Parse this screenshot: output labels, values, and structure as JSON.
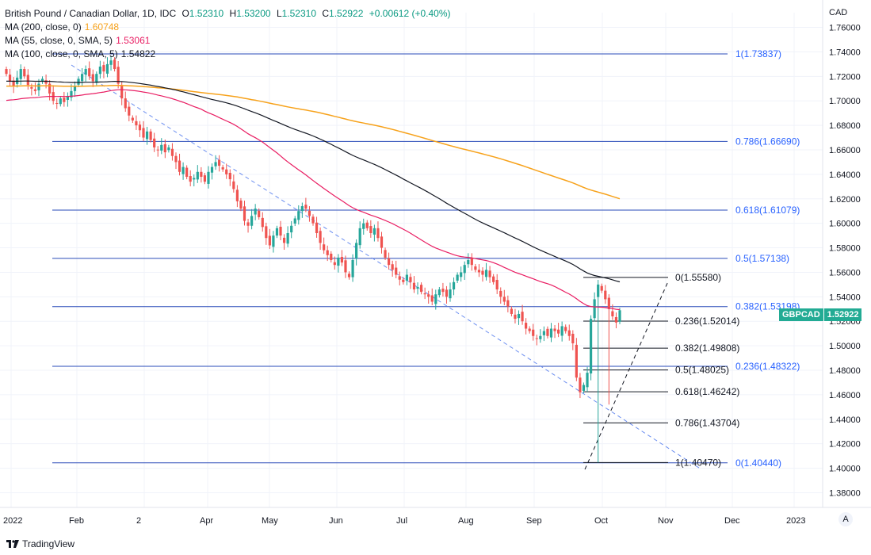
{
  "legend": {
    "title": "British Pound / Canadian Dollar, 1D, IDC",
    "ohlc": {
      "o_label": "O",
      "o": "1.52310",
      "h_label": "H",
      "h": "1.53200",
      "l_label": "L",
      "l": "1.52310",
      "c_label": "C",
      "c": "1.52922",
      "change": "+0.00612 (+0.40%)"
    },
    "ma200": {
      "label": "MA (200, close, 0)",
      "value": "1.60748",
      "color": "#f7a21b"
    },
    "ma55": {
      "label": "MA (55, close, 0, SMA, 5)",
      "value": "1.53061",
      "color": "#e91e63"
    },
    "ma100": {
      "label": "MA (100, close, 0, SMA, 5)",
      "value": "1.54822",
      "color": "#131722"
    }
  },
  "axis_unit": "CAD",
  "ticker": {
    "symbol": "GBPCAD",
    "price": "1.52922"
  },
  "logo_text": "TradingView",
  "auto_label": "A",
  "chart_data": {
    "type": "candlestick",
    "y_ticks": [
      "1.76000",
      "1.74000",
      "1.72000",
      "1.70000",
      "1.68000",
      "1.66000",
      "1.64000",
      "1.62000",
      "1.60000",
      "1.58000",
      "1.56000",
      "1.54000",
      "1.52000",
      "1.50000",
      "1.48000",
      "1.46000",
      "1.44000",
      "1.42000",
      "1.40000",
      "1.38000"
    ],
    "y_range": [
      1.368,
      1.772
    ],
    "x_ticks": [
      "2022",
      "Feb",
      "2",
      "Apr",
      "May",
      "Jun",
      "Jul",
      "Aug",
      "Sep",
      "Oct",
      "Nov",
      "Dec",
      "2023"
    ],
    "blue_fib": [
      {
        "level": 1.73837,
        "label": "1(1.73837)"
      },
      {
        "level": 1.6669,
        "label": "0.786(1.66690)"
      },
      {
        "level": 1.61079,
        "label": "0.618(1.61079)"
      },
      {
        "level": 1.57138,
        "label": "0.5(1.57138)"
      },
      {
        "level": 1.53198,
        "label": "0.382(1.53198)"
      },
      {
        "level": 1.48322,
        "label": "0.236(1.48322)"
      },
      {
        "level": 1.4044,
        "label": "0(1.40440)"
      }
    ],
    "black_fib": [
      {
        "level": 1.5558,
        "label": "0(1.55580)"
      },
      {
        "level": 1.52014,
        "label": "0.236(1.52014)"
      },
      {
        "level": 1.49808,
        "label": "0.382(1.49808)"
      },
      {
        "level": 1.48025,
        "label": "0.5(1.48025)"
      },
      {
        "level": 1.46242,
        "label": "0.618(1.46242)"
      },
      {
        "level": 1.43704,
        "label": "0.786(1.43704)"
      },
      {
        "level": 1.4047,
        "label": "1(1.40470)"
      }
    ],
    "closes": [
      1.722,
      1.716,
      1.712,
      1.719,
      1.726,
      1.72,
      1.713,
      1.71,
      1.708,
      1.714,
      1.718,
      1.714,
      1.706,
      1.7,
      1.698,
      1.702,
      1.699,
      1.704,
      1.708,
      1.712,
      1.718,
      1.722,
      1.726,
      1.72,
      1.716,
      1.722,
      1.728,
      1.724,
      1.73,
      1.733,
      1.726,
      1.714,
      1.702,
      1.694,
      1.688,
      1.684,
      1.68,
      1.676,
      1.67,
      1.675,
      1.668,
      1.662,
      1.66,
      1.664,
      1.658,
      1.662,
      1.655,
      1.65,
      1.642,
      1.646,
      1.638,
      1.634,
      1.637,
      1.642,
      1.638,
      1.634,
      1.642,
      1.646,
      1.65,
      1.647,
      1.644,
      1.64,
      1.636,
      1.628,
      1.618,
      1.612,
      1.602,
      1.598,
      1.606,
      1.612,
      1.605,
      1.597,
      1.588,
      1.582,
      1.59,
      1.596,
      1.59,
      1.584,
      1.592,
      1.598,
      1.604,
      1.61,
      1.614,
      1.612,
      1.606,
      1.6,
      1.592,
      1.584,
      1.578,
      1.574,
      1.57,
      1.566,
      1.572,
      1.568,
      1.56,
      1.556,
      1.57,
      1.584,
      1.596,
      1.6,
      1.596,
      1.592,
      1.596,
      1.588,
      1.58,
      1.572,
      1.566,
      1.562,
      1.558,
      1.554,
      1.552,
      1.558,
      1.552,
      1.546,
      1.548,
      1.544,
      1.542,
      1.54,
      1.536,
      1.542,
      1.546,
      1.544,
      1.54,
      1.546,
      1.552,
      1.558,
      1.56,
      1.566,
      1.57,
      1.566,
      1.562,
      1.56,
      1.558,
      1.562,
      1.556,
      1.552,
      1.546,
      1.54,
      1.536,
      1.532,
      1.526,
      1.522,
      1.526,
      1.52,
      1.514,
      1.512,
      1.508,
      1.506,
      1.508,
      1.512,
      1.508,
      1.514,
      1.512,
      1.51,
      1.516,
      1.512,
      1.508,
      1.502,
      1.474,
      1.462,
      1.468,
      1.478,
      1.522,
      1.538,
      1.55,
      1.545,
      1.538,
      1.53,
      1.524,
      1.519,
      1.529
    ]
  }
}
